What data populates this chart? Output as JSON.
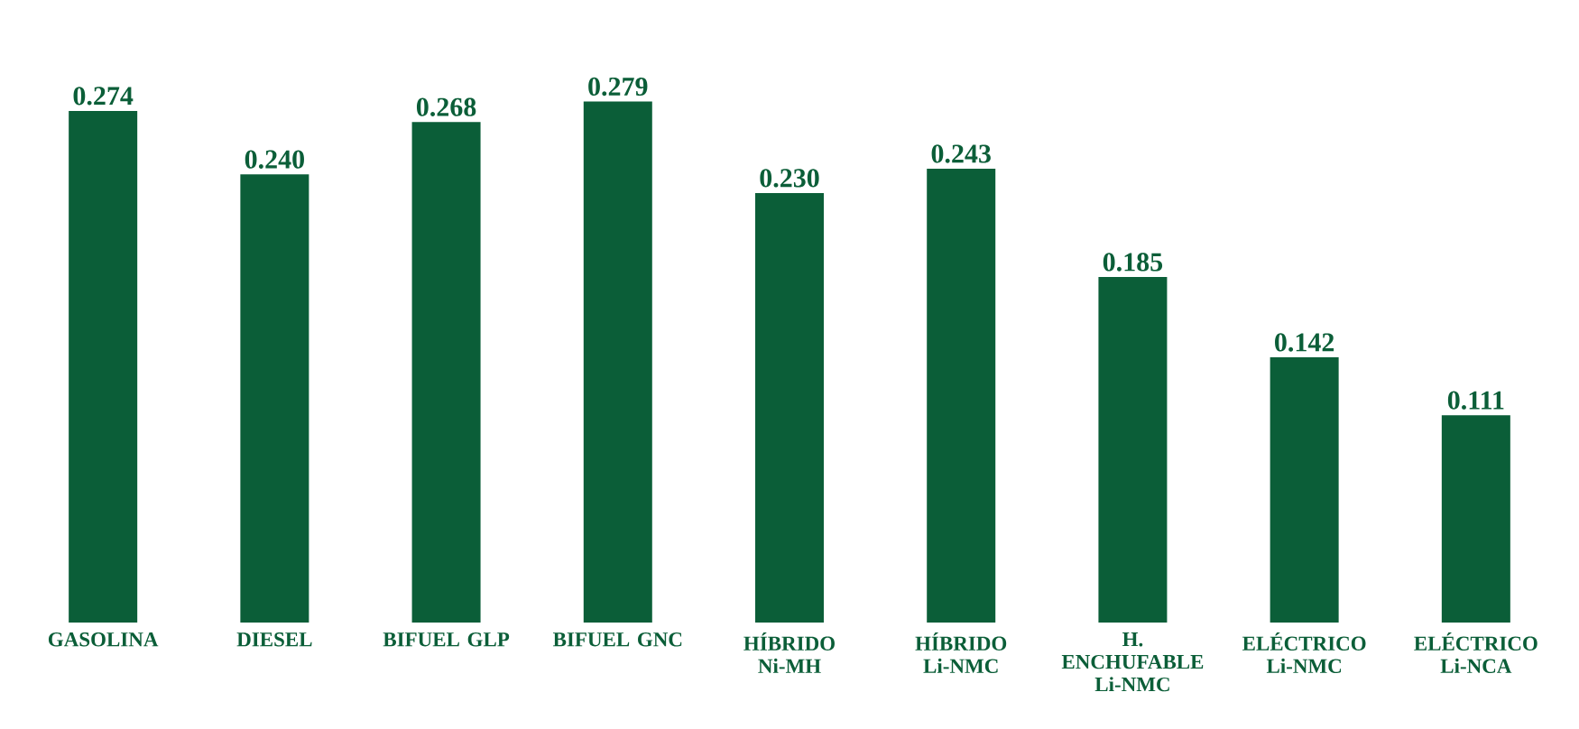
{
  "chart_data": {
    "type": "bar",
    "categories": [
      "GASOLINA",
      "DIESEL",
      "BIFUEL GLP",
      "BIFUEL GNC",
      "HÍBRIDO Ni-MH",
      "HÍBRIDO Li-NMC",
      "H. ENCHUFABLE Li-NMC",
      "ELÉCTRICO Li-NMC",
      "ELÉCTRICO Li-NCA"
    ],
    "values": [
      0.274,
      0.24,
      0.268,
      0.279,
      0.23,
      0.243,
      0.185,
      0.142,
      0.111
    ],
    "value_labels": [
      "0.274",
      "0.240",
      "0.268",
      "0.279",
      "0.230",
      "0.243",
      "0.185",
      "0.142",
      "0.111"
    ],
    "color": "#0b5e38"
  }
}
